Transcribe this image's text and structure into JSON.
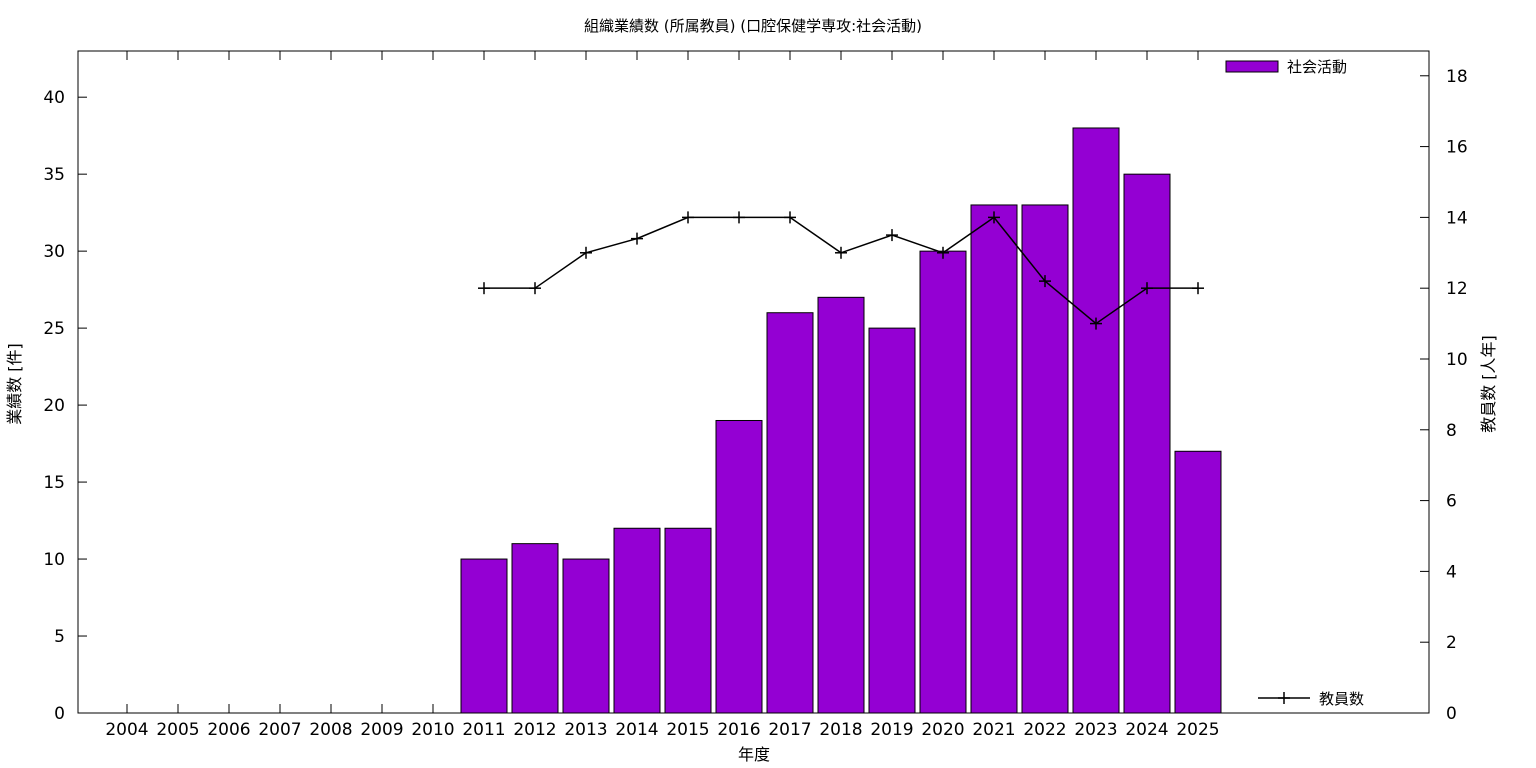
{
  "chart_data": {
    "type": "bar",
    "title": "組織業績数 (所属教員) (口腔保健学専攻:社会活動)",
    "xlabel": "年度",
    "ylabel_left": "業績数 [件]",
    "ylabel_right": "教員数 [人年]",
    "categories": [
      "2004",
      "2005",
      "2006",
      "2007",
      "2008",
      "2009",
      "2010",
      "2011",
      "2012",
      "2013",
      "2014",
      "2015",
      "2016",
      "2017",
      "2018",
      "2019",
      "2020",
      "2021",
      "2022",
      "2023",
      "2024",
      "2025"
    ],
    "bar_series": {
      "name": "社会活動",
      "values": [
        0,
        0,
        0,
        0,
        0,
        0,
        0,
        10,
        11,
        10,
        12,
        12,
        19,
        26,
        27,
        25,
        30,
        33,
        33,
        38,
        35,
        17
      ]
    },
    "line_series": {
      "name": "教員数",
      "values": [
        null,
        null,
        null,
        null,
        null,
        null,
        null,
        12,
        12,
        13,
        13.4,
        14,
        14,
        14,
        13,
        13.5,
        13,
        14,
        12.2,
        11,
        12,
        12
      ]
    },
    "ylim_left": [
      0,
      43
    ],
    "ylim_right": [
      0,
      18.7
    ],
    "yticks_left": [
      0,
      5,
      10,
      15,
      20,
      25,
      30,
      35,
      40
    ],
    "yticks_right": [
      0,
      2,
      4,
      6,
      8,
      10,
      12,
      14,
      16,
      18
    ],
    "colors": {
      "bar": "#9400d3",
      "line": "#000000"
    },
    "legend": [
      {
        "position": "top-right",
        "series": "bar"
      },
      {
        "position": "bottom-right",
        "series": "line"
      }
    ]
  }
}
